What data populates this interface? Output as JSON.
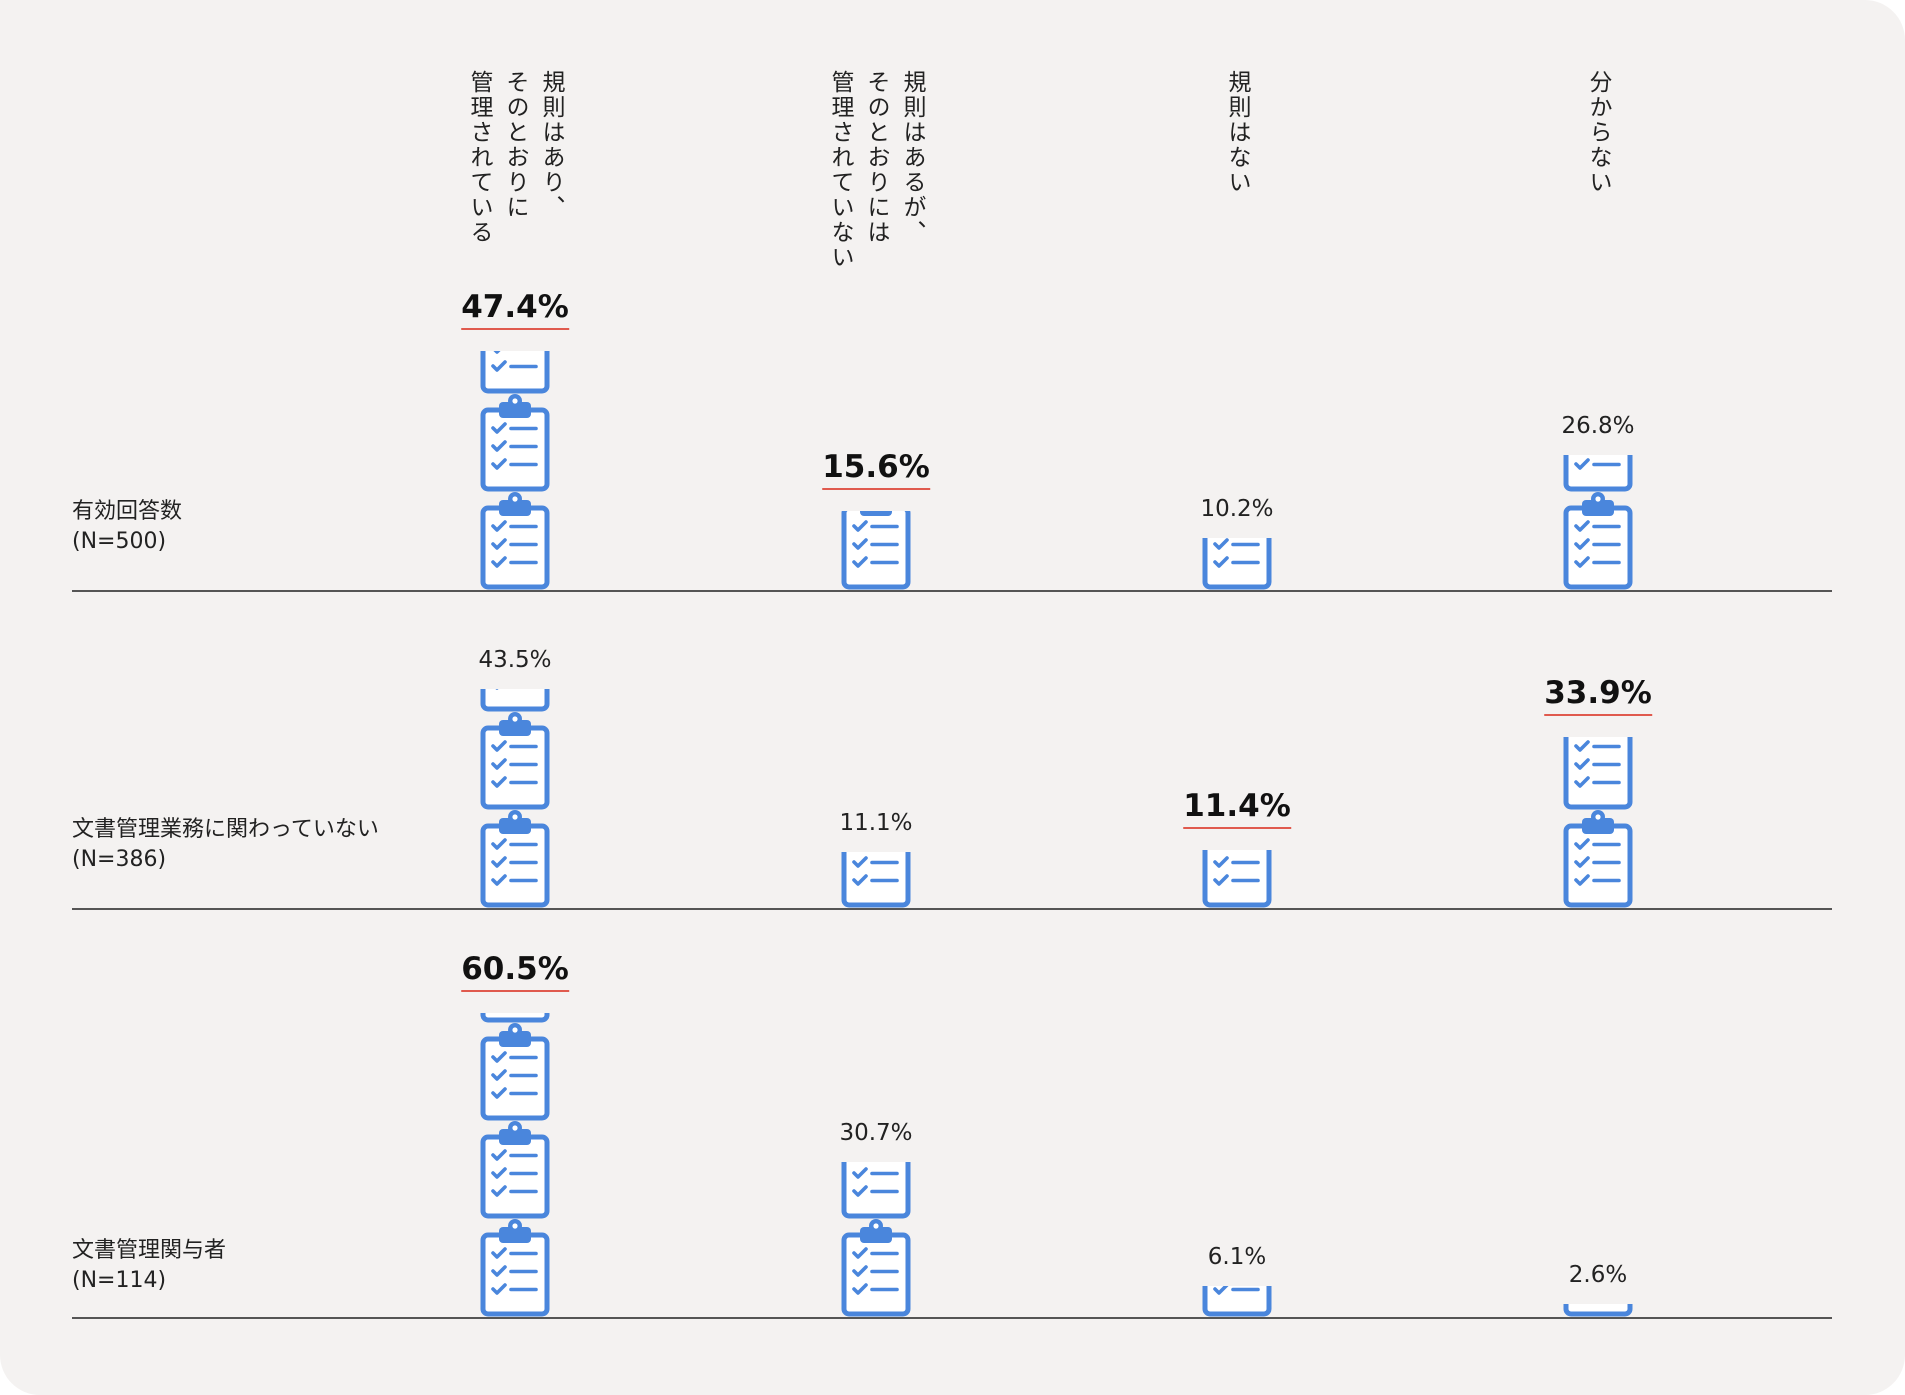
{
  "colors": {
    "icon": "#4a86dc",
    "highlight_underline": "#e05a4e",
    "background": "#f4f2f1"
  },
  "icon_name": "clipboard-checklist-icon",
  "chart_data": {
    "type": "pictograph",
    "categories": [
      "規則はあり、\nそのとおりに\n管理されている",
      "規則はあるが、\nそのとおりには\n管理されていない",
      "規則はない",
      "分からない"
    ],
    "rows": [
      {
        "label": "有効回答数",
        "n": "(N=500)",
        "values": [
          47.4,
          15.6,
          10.2,
          26.8
        ],
        "labels": [
          "47.4%",
          "15.6%",
          "10.2%",
          "26.8%"
        ],
        "highlight": [
          true,
          true,
          false,
          false
        ]
      },
      {
        "label": "文書管理業務に関わっていない",
        "n": "(N=386)",
        "values": [
          43.5,
          11.1,
          11.4,
          33.9
        ],
        "labels": [
          "43.5%",
          "11.1%",
          "11.4%",
          "33.9%"
        ],
        "highlight": [
          false,
          false,
          true,
          true
        ]
      },
      {
        "label": "文書管理関与者",
        "n": "(N=114)",
        "values": [
          60.5,
          30.7,
          6.1,
          2.6
        ],
        "labels": [
          "60.5%",
          "30.7%",
          "6.1%",
          "2.6%"
        ],
        "highlight": [
          true,
          false,
          false,
          false
        ]
      }
    ]
  }
}
